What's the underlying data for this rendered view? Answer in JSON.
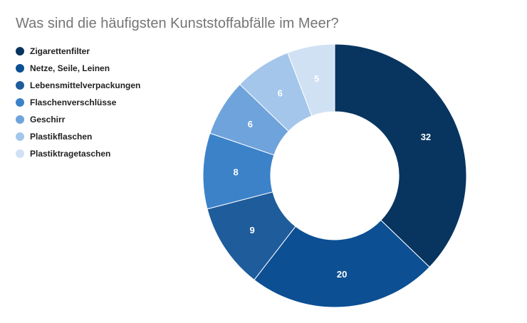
{
  "chart_data": {
    "type": "pie",
    "variant": "donut",
    "title": "Was sind die häufigsten Kunststoffabfälle im Meer?",
    "legend_position": "left",
    "slices": [
      {
        "label": "Zigarettenfilter",
        "value": 32,
        "color": "#08355f"
      },
      {
        "label": "Netze, Seile, Leinen",
        "value": 20,
        "color": "#0c4f93"
      },
      {
        "label": "Lebensmittelverpackungen",
        "value": 9,
        "color": "#1f5c9c"
      },
      {
        "label": "Flaschenverschlüsse",
        "value": 8,
        "color": "#3b82c9"
      },
      {
        "label": "Geschirr",
        "value": 6,
        "color": "#6fa3dc"
      },
      {
        "label": "Plastikflaschen",
        "value": 6,
        "color": "#a3c6ea"
      },
      {
        "label": "Plastiktragetaschen",
        "value": 5,
        "color": "#d0e1f4"
      }
    ]
  }
}
